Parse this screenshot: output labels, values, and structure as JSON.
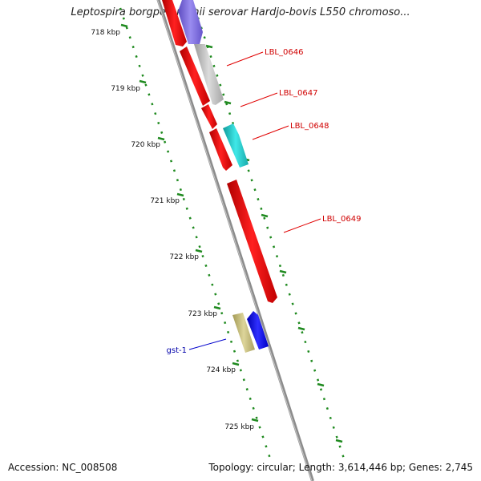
{
  "title": "Leptospira borgpetersenii serovar Hardjo-bovis L550 chromoso...",
  "footer": {
    "accession": "Accession: NC_008508",
    "stats": "Topology: circular; Length: 3,614,446 bp; Genes: 2,745"
  },
  "ticks": [
    {
      "label": "718 kbp"
    },
    {
      "label": "719 kbp"
    },
    {
      "label": "720 kbp"
    },
    {
      "label": "721 kbp"
    },
    {
      "label": "722 kbp"
    },
    {
      "label": "723 kbp"
    },
    {
      "label": "724 kbp"
    },
    {
      "label": "725 kbp"
    }
  ],
  "gene_labels": [
    {
      "text": "LBL_0646",
      "color": "#d00000"
    },
    {
      "text": "LBL_0647",
      "color": "#d00000"
    },
    {
      "text": "LBL_0648",
      "color": "#d00000"
    },
    {
      "text": "LBL_0649",
      "color": "#d00000"
    },
    {
      "text": "gst-1",
      "color": "#0000aa"
    }
  ],
  "colors": {
    "backbone": "#8c8c8c",
    "tick_dots": "#1f8a1f",
    "red_gene": "#ff0000",
    "grey_gene": "#c0c0c0",
    "purple_gene": "#7b68ee",
    "cyan_gene": "#20d0d0",
    "olive_gene": "#c8bf7a",
    "blue_gene": "#1010ff"
  }
}
